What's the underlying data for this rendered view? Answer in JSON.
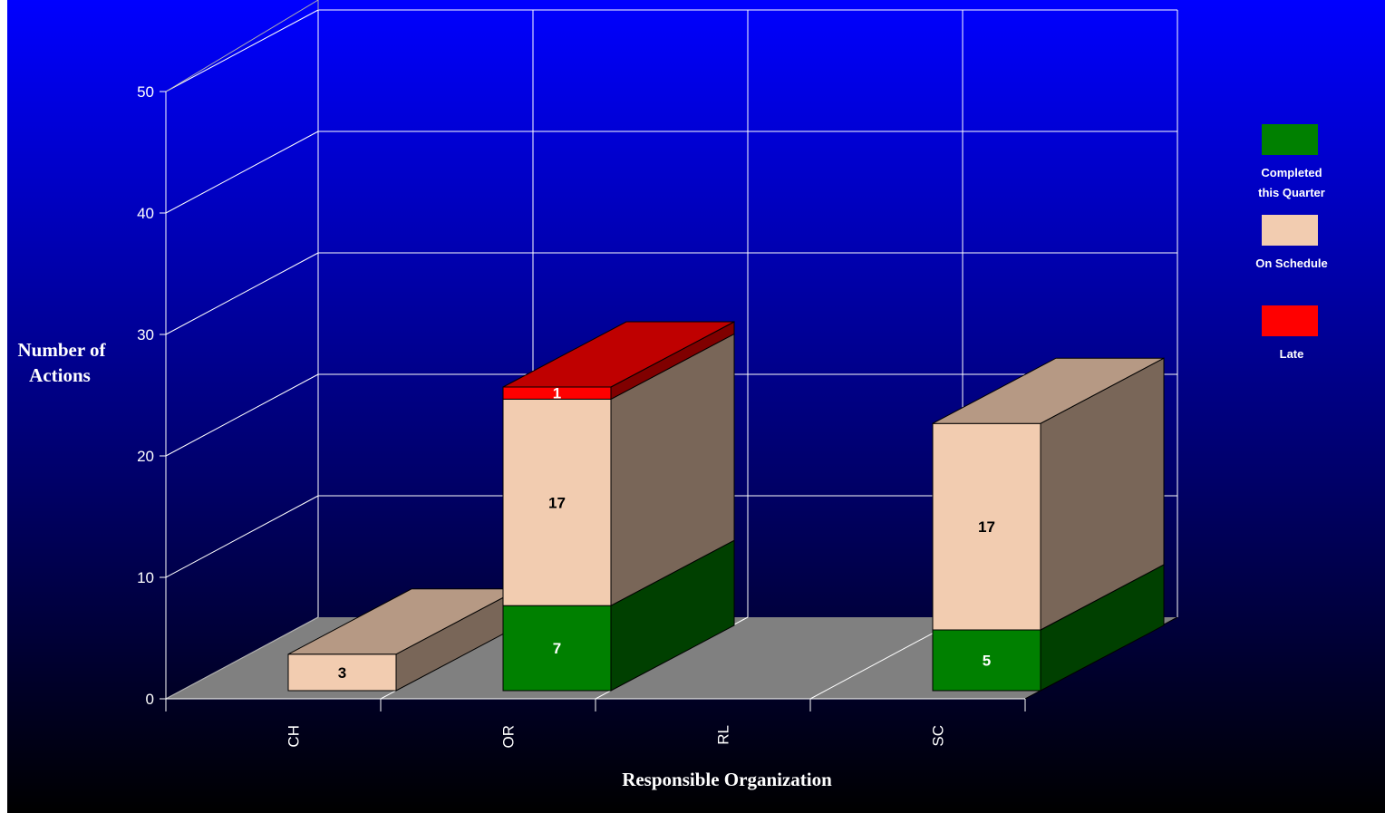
{
  "chart_data": {
    "type": "bar",
    "stacked": true,
    "three_d": true,
    "categories": [
      "CH",
      "OR",
      "RL",
      "SC"
    ],
    "series": [
      {
        "name": "Completed this Quarter",
        "legend_lines": [
          "Completed",
          "this Quarter"
        ],
        "color": "#008000",
        "values": [
          0,
          7,
          0,
          5
        ]
      },
      {
        "name": "On Schedule",
        "legend_lines": [
          "On Schedule"
        ],
        "color": "#F2CCB0",
        "values": [
          3,
          17,
          0,
          17
        ]
      },
      {
        "name": "Late",
        "legend_lines": [
          "Late"
        ],
        "color": "#FF0000",
        "values": [
          0,
          1,
          0,
          0
        ]
      }
    ],
    "xlabel": "Responsible Organization",
    "ylabel_lines": [
      "Number of",
      "Actions"
    ],
    "ylim": [
      0,
      50
    ],
    "yticks": [
      "0",
      "10",
      "20",
      "30",
      "40",
      "50"
    ],
    "grid": true,
    "legend_position": "right",
    "background": {
      "top": "#0000FF",
      "bottom": "#000000"
    },
    "floor_color": "#808080",
    "text_color": "#FFFFFF"
  }
}
